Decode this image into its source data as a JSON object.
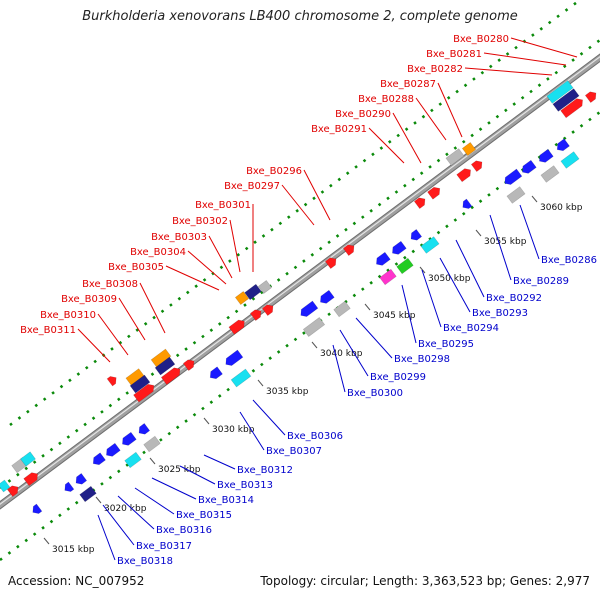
{
  "title": "Burkholderia xenovorans LB400 chromosome 2, complete genome",
  "footer": {
    "accession": "Accession: NC_007952",
    "topology": "Topology: circular; Length: 3,363,523 bp; Genes: 2,977"
  },
  "colors": {
    "top_labels": "#e00000",
    "bottom_labels": "#0000cc",
    "backbone": "#a0a0a0",
    "dots": "#0b8a0b",
    "forward_gene": "#ff1a1a",
    "reverse_gene": "#1a1aff",
    "cyan_gene": "#18e0f0",
    "gray_gene": "#b8b8b8",
    "orange_gene": "#ff9a00",
    "navy_gene": "#202088",
    "magenta_gene": "#ff33cc",
    "green_gene": "#22cc22"
  },
  "ticks": [
    "3015 kbp",
    "3020 kbp",
    "3025 kbp",
    "3030 kbp",
    "3035 kbp",
    "3040 kbp",
    "3045 kbp",
    "3050 kbp",
    "3055 kbp",
    "3060 kbp"
  ],
  "top_labels": [
    "Bxe_B0280",
    "Bxe_B0281",
    "Bxe_B0282",
    "Bxe_B0287",
    "Bxe_B0288",
    "Bxe_B0290",
    "Bxe_B0291",
    "Bxe_B0296",
    "Bxe_B0297",
    "Bxe_B0301",
    "Bxe_B0302",
    "Bxe_B0303",
    "Bxe_B0304",
    "Bxe_B0305",
    "Bxe_B0308",
    "Bxe_B0309",
    "Bxe_B0310",
    "Bxe_B0311"
  ],
  "bottom_labels": [
    "Bxe_B0286",
    "Bxe_B0289",
    "Bxe_B0292",
    "Bxe_B0293",
    "Bxe_B0294",
    "Bxe_B0295",
    "Bxe_B0298",
    "Bxe_B0299",
    "Bxe_B0300",
    "Bxe_B0306",
    "Bxe_B0307",
    "Bxe_B0312",
    "Bxe_B0313",
    "Bxe_B0314",
    "Bxe_B0315",
    "Bxe_B0316",
    "Bxe_B0317",
    "Bxe_B0318"
  ]
}
